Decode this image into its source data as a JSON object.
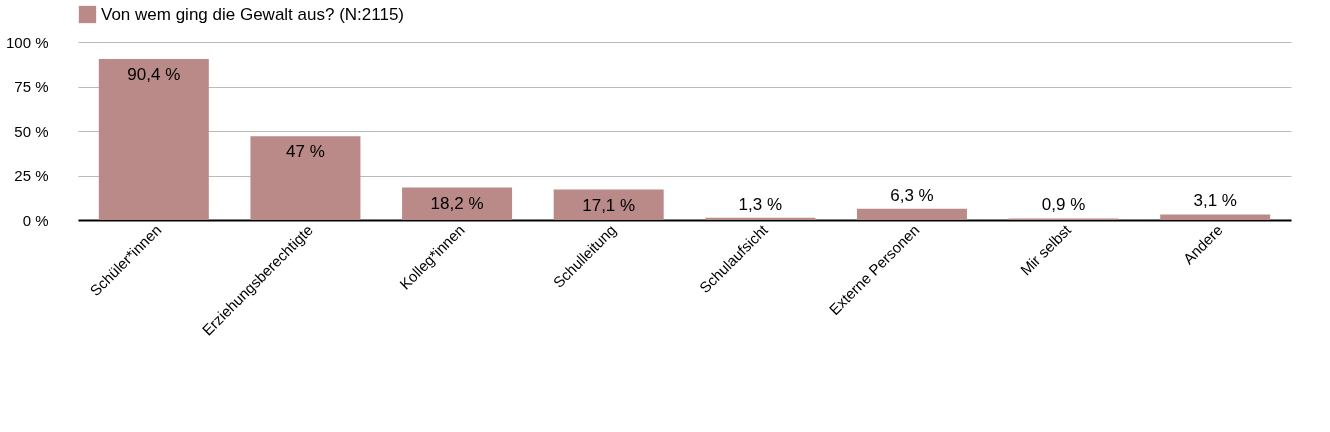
{
  "chart_data": {
    "type": "bar",
    "categories": [
      "Schüler*innen",
      "Erziehungsberechtigte",
      "Kolleg*innen",
      "Schulleitung",
      "Schulaufsicht",
      "Externe Personen",
      "Mir selbst",
      "Andere"
    ],
    "series": [
      {
        "name": "Von wem ging die Gewalt aus? (N:2115)",
        "color": "#b98a87",
        "values": [
          90.4,
          47,
          18.2,
          17.1,
          1.3,
          6.3,
          0.9,
          3.1
        ],
        "value_labels": [
          "90,4 %",
          "47 %",
          "18,2 %",
          "17,1 %",
          "1,3 %",
          "6,3 %",
          "0,9 %",
          "3,1 %"
        ]
      }
    ],
    "ylim": [
      0,
      100
    ],
    "yticks": [
      {
        "value": 0,
        "label": "0 %"
      },
      {
        "value": 25,
        "label": "25 %"
      },
      {
        "value": 50,
        "label": "50 %"
      },
      {
        "value": 75,
        "label": "75 %"
      },
      {
        "value": 100,
        "label": "100 %"
      }
    ],
    "grid": "y",
    "legend": "top"
  }
}
